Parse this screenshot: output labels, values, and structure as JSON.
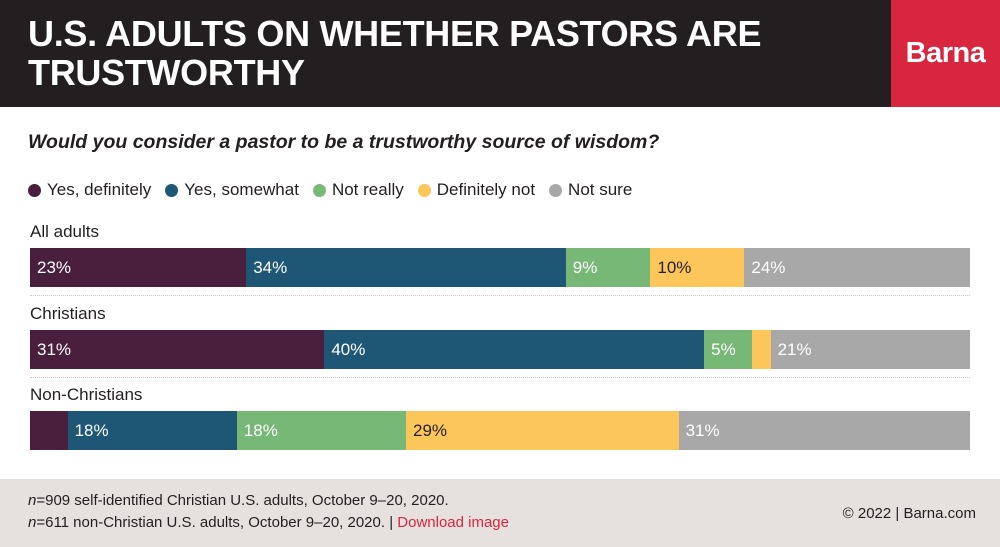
{
  "header": {
    "title": "U.S. ADULTS ON WHETHER PASTORS ARE TRUSTWORTHY",
    "brand": "Barna"
  },
  "question": "Would you consider a pastor to be a trustworthy source of wisdom?",
  "colors": {
    "yes_definitely": "#4a1f3e",
    "yes_somewhat": "#1e5676",
    "not_really": "#78b876",
    "definitely_not": "#fcc65b",
    "not_sure": "#a8a8a8",
    "brand": "#d7263d",
    "header_bg": "#231f20",
    "footer_bg": "#e6e1df"
  },
  "chart_data": {
    "type": "bar",
    "orientation": "horizontal",
    "stacked": true,
    "xlim": [
      0,
      100
    ],
    "categories": [
      "All adults",
      "Christians",
      "Non-Christians"
    ],
    "series": [
      {
        "name": "Yes, definitely",
        "values": [
          23,
          31,
          4
        ],
        "labels": [
          "23%",
          "31%",
          ""
        ]
      },
      {
        "name": "Yes, somewhat",
        "values": [
          34,
          40,
          18
        ],
        "labels": [
          "34%",
          "40%",
          "18%"
        ]
      },
      {
        "name": "Not really",
        "values": [
          9,
          5,
          18
        ],
        "labels": [
          "9%",
          "5%",
          "18%"
        ]
      },
      {
        "name": "Definitely not",
        "values": [
          10,
          2,
          29
        ],
        "labels": [
          "10%",
          "",
          "29%"
        ]
      },
      {
        "name": "Not sure",
        "values": [
          24,
          21,
          31
        ],
        "labels": [
          "24%",
          "21%",
          "31%"
        ]
      }
    ],
    "legend_position": "top-left"
  },
  "footer": {
    "note1_n": "n",
    "note1_text": "=909 self-identified Christian U.S. adults, October 9–20, 2020.",
    "note2_n": "n",
    "note2_text": "=611 non-Christian U.S. adults, October 9–20, 2020. | ",
    "download_link": "Download image",
    "credit": "© 2022 |   Barna.com"
  }
}
